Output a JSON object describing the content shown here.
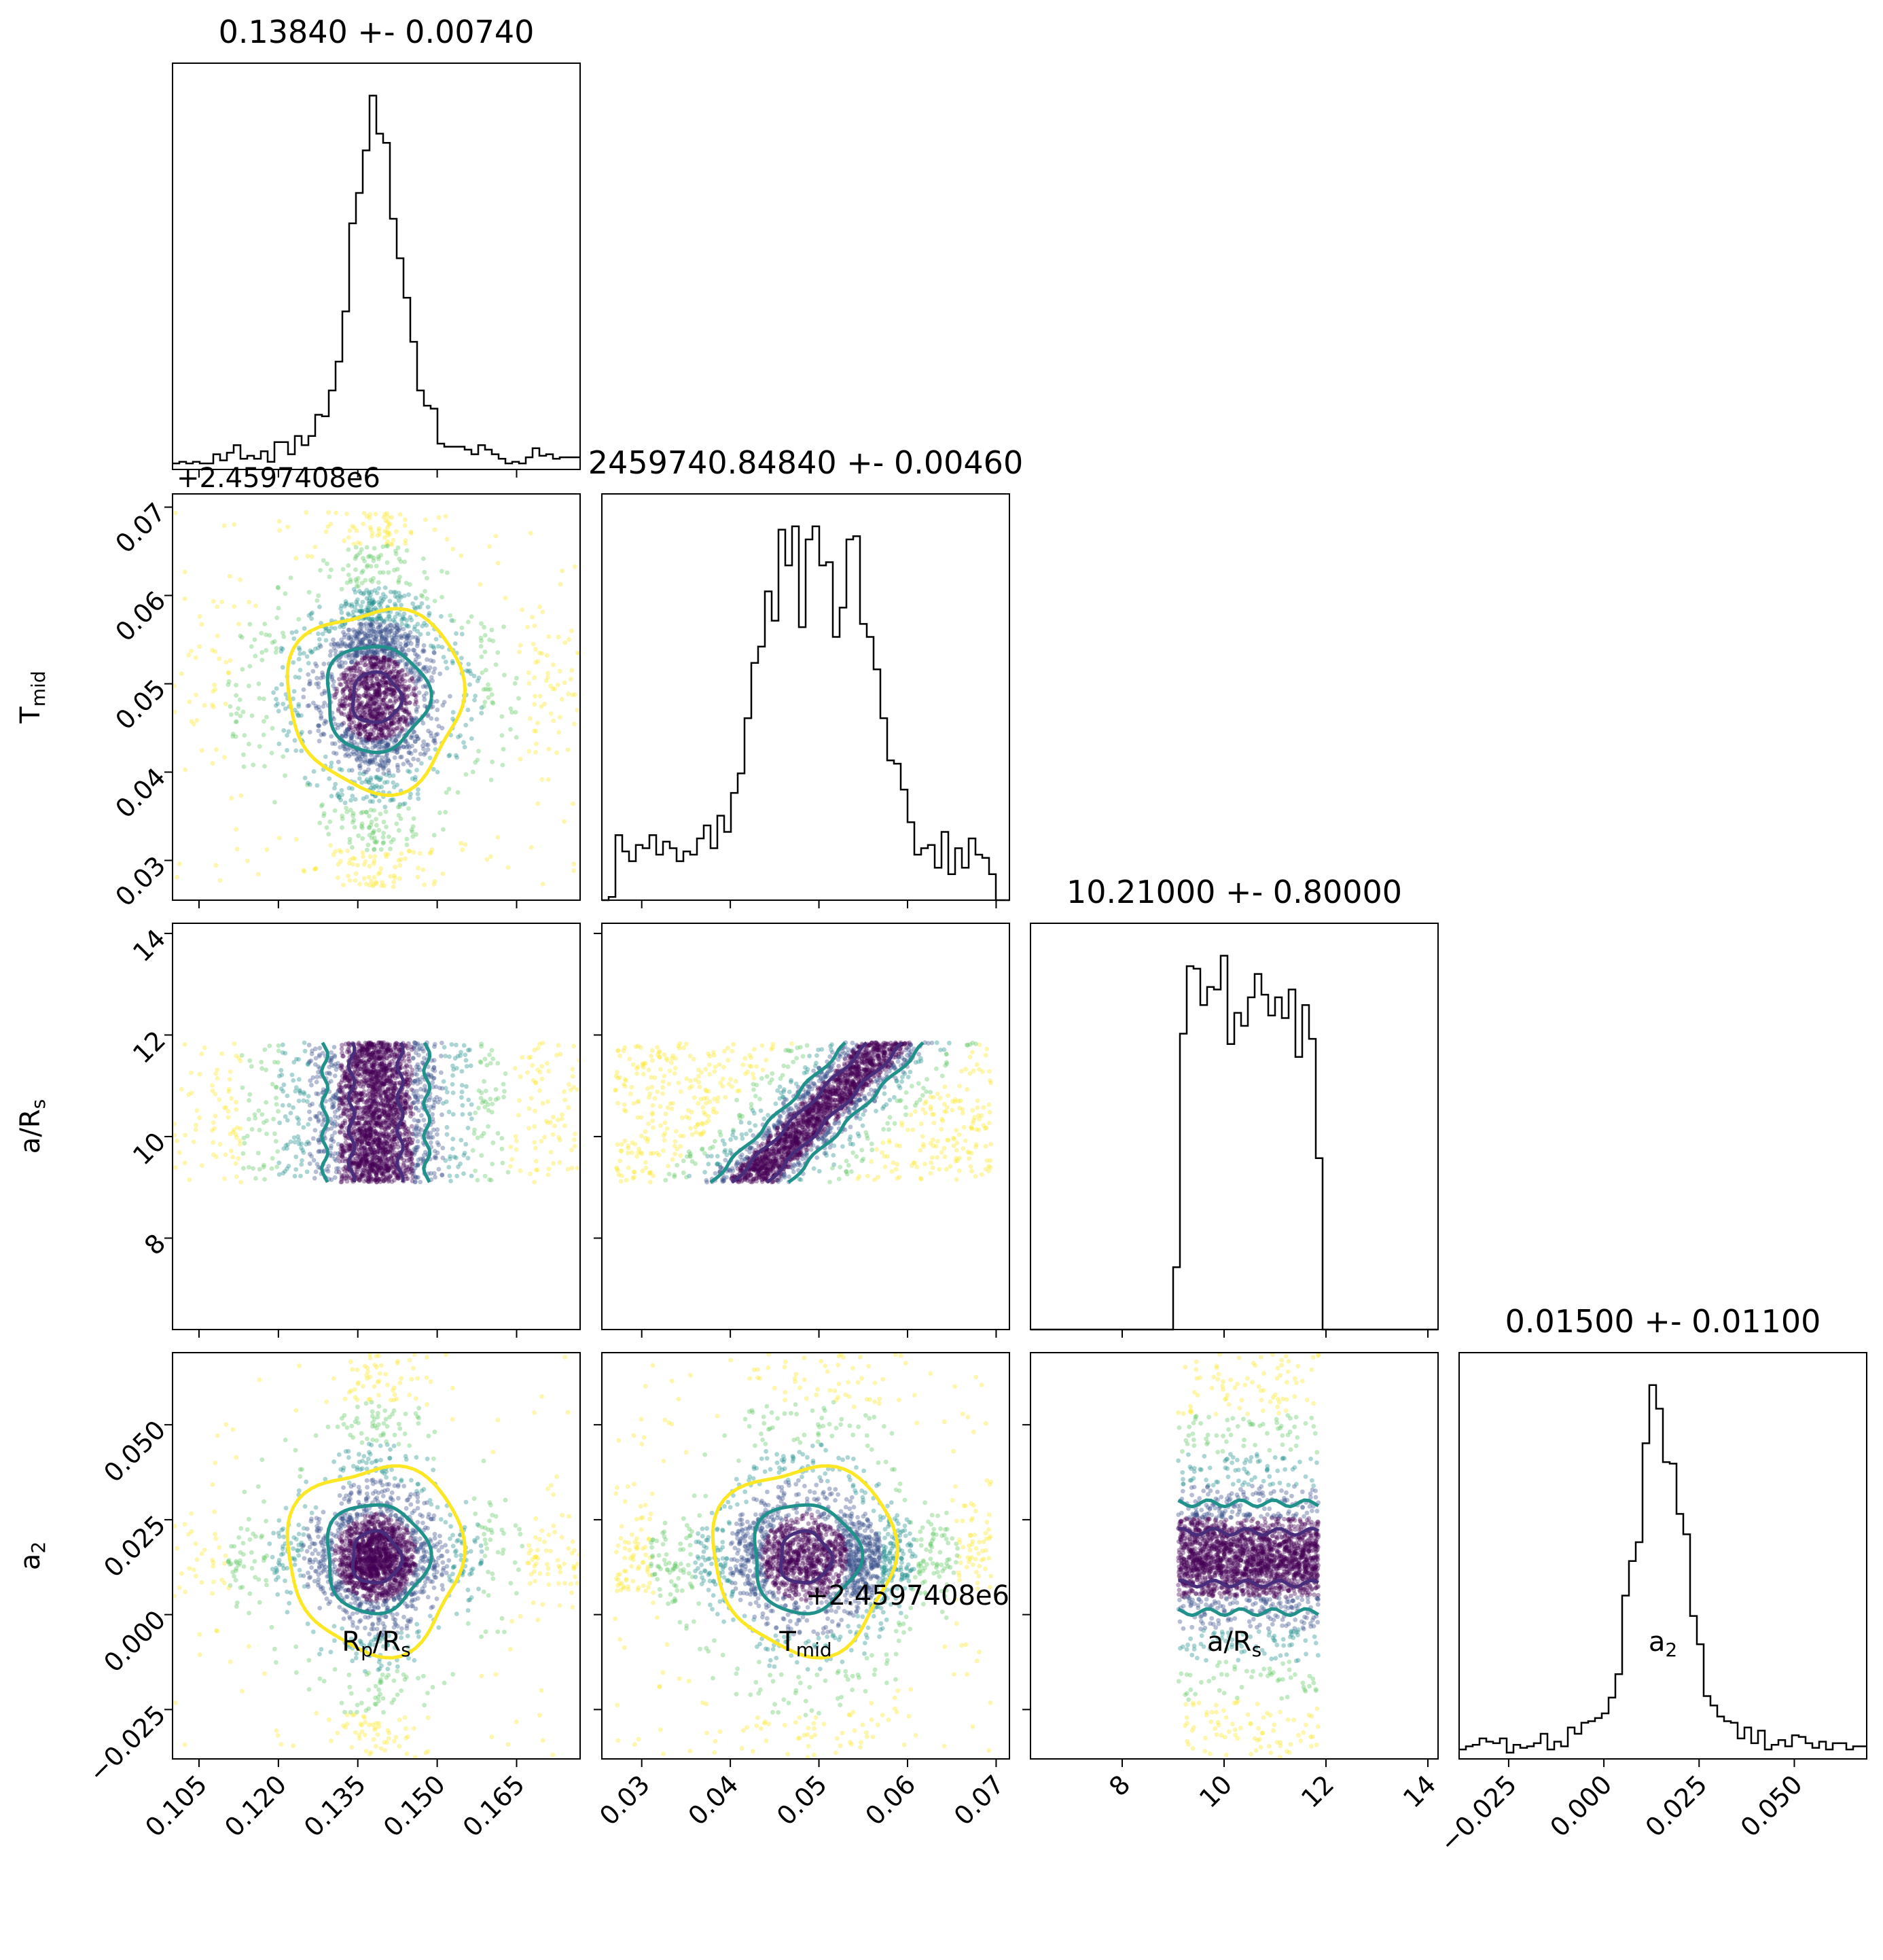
{
  "chart_data": {
    "type": "scatter",
    "kind": "corner-plot",
    "description_of_marks": "lower-triangle 2D posterior scatter with density contours; diagonal 1D histograms",
    "parameters": [
      {
        "key": "rp",
        "label": "R",
        "label_sub": "p",
        "label_suffix": "/R",
        "label_suffix_sub": "s",
        "title": "0.13840 +- 0.00740",
        "center": 0.1384,
        "sigma": 0.0074,
        "range": [
          0.1,
          0.177
        ],
        "ticks": [
          "0.105",
          "0.120",
          "0.135",
          "0.150",
          "0.165"
        ],
        "tick_values": [
          0.105,
          0.12,
          0.135,
          0.15,
          0.165
        ]
      },
      {
        "key": "tmid",
        "label": "T",
        "label_sub": "mid",
        "label_suffix": "",
        "label_suffix_sub": "",
        "title": "2459740.84840 +- 0.00460",
        "center": 0.0484,
        "sigma": 0.0046,
        "range": [
          0.0255,
          0.0715
        ],
        "ticks": [
          "0.03",
          "0.04",
          "0.05",
          "0.06",
          "0.07"
        ],
        "tick_values": [
          0.03,
          0.04,
          0.05,
          0.06,
          0.07
        ],
        "offset_label": "+2.4597408e6"
      },
      {
        "key": "ars",
        "label": "a/R",
        "label_sub": "s",
        "label_suffix": "",
        "label_suffix_sub": "",
        "title": "10.21000 +- 0.80000",
        "center": 10.21,
        "sigma": 0.8,
        "range": [
          6.2,
          14.2
        ],
        "ticks": [
          "8",
          "10",
          "12",
          "14"
        ],
        "tick_values": [
          8,
          10,
          12,
          14
        ],
        "prior_bounds": [
          9.1,
          11.85
        ]
      },
      {
        "key": "a2",
        "label": "a",
        "label_sub": "2",
        "label_suffix": "",
        "label_suffix_sub": "",
        "title": "0.01500 +- 0.01100",
        "center": 0.015,
        "sigma": 0.011,
        "range": [
          -0.038,
          0.069
        ],
        "ticks": [
          "−0.025",
          "0.000",
          "0.025",
          "0.050"
        ],
        "tick_values": [
          -0.025,
          0.0,
          0.025,
          0.05
        ]
      }
    ],
    "y_ticks": {
      "tmid": {
        "ticks": [
          "0.03",
          "0.04",
          "0.05",
          "0.06",
          "0.07"
        ],
        "tick_values": [
          0.03,
          0.04,
          0.05,
          0.06,
          0.07
        ],
        "offset_label": "+2.4597408e6"
      },
      "ars": {
        "ticks": [
          "8",
          "10",
          "12",
          "14"
        ],
        "tick_values": [
          8,
          10,
          12,
          14
        ]
      },
      "a2": {
        "ticks": [
          "−0.025",
          "0.000",
          "0.025",
          "0.050"
        ],
        "tick_values": [
          -0.025,
          0.0,
          0.025,
          0.05
        ]
      }
    },
    "x_offset_label": "+2.4597408e6",
    "colors": {
      "inner": "#440154",
      "mid": "#3b528b",
      "outer": "#21908d",
      "far": "#5ec962",
      "edge": "#fde725",
      "contour1": "#472d7b",
      "contour2": "#21918c",
      "contour3": "#fde725",
      "hist": "#000000"
    }
  }
}
